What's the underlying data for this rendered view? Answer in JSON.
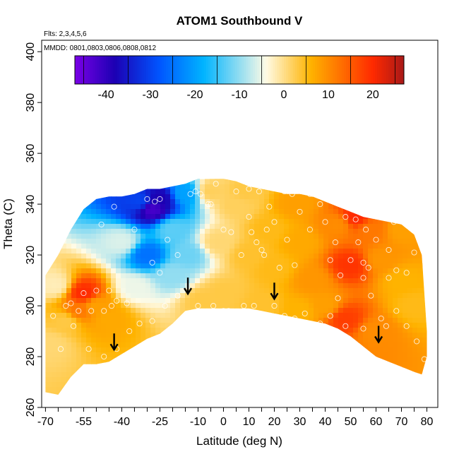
{
  "chart_data": {
    "type": "heatmap",
    "title": "ATOM1 Southbound V",
    "note_flights": "Flts: 2,3,4,5,6",
    "note_dates": "MMDD: 0801,0803,0806,0808,0812",
    "xlabel": "Latitude (deg N)",
    "ylabel": "Theta (C)",
    "xlim": [
      -70,
      80
    ],
    "ylim": [
      260,
      400
    ],
    "x_tick_labels": [
      "-70",
      "-55",
      "-40",
      "-25",
      "-10",
      "0",
      "10",
      "20",
      "30",
      "40",
      "50",
      "60",
      "70",
      "80"
    ],
    "y_tick_labels": [
      "260",
      "280",
      "300",
      "320",
      "340",
      "360",
      "380",
      "400"
    ],
    "colorbar": {
      "min": -47,
      "max": 27,
      "tick_labels": [
        "-40",
        "-30",
        "-20",
        "-10",
        "0",
        "10",
        "20"
      ],
      "stops": [
        "#7a00e6",
        "#1c00b3",
        "#0055ff",
        "#00b4ff",
        "#fffbe6",
        "#ffb300",
        "#ff2a00",
        "#a81818"
      ]
    },
    "envelope": {
      "top": [
        [
          -70,
          312
        ],
        [
          -65,
          320
        ],
        [
          -60,
          330
        ],
        [
          -55,
          338
        ],
        [
          -50,
          342
        ],
        [
          -45,
          343
        ],
        [
          -40,
          343
        ],
        [
          -35,
          344
        ],
        [
          -30,
          346
        ],
        [
          -25,
          346
        ],
        [
          -20,
          347
        ],
        [
          -15,
          348
        ],
        [
          -10,
          350
        ],
        [
          -5,
          350
        ],
        [
          0,
          350
        ],
        [
          5,
          349
        ],
        [
          10,
          347
        ],
        [
          15,
          346
        ],
        [
          20,
          345
        ],
        [
          25,
          344
        ],
        [
          30,
          344
        ],
        [
          35,
          343
        ],
        [
          40,
          341
        ],
        [
          45,
          339
        ],
        [
          50,
          337
        ],
        [
          55,
          335
        ],
        [
          60,
          334
        ],
        [
          65,
          333
        ],
        [
          70,
          332
        ],
        [
          75,
          328
        ],
        [
          78,
          320
        ],
        [
          80,
          290
        ]
      ],
      "bottom": [
        [
          80,
          280
        ],
        [
          78,
          273
        ],
        [
          75,
          274
        ],
        [
          70,
          276
        ],
        [
          65,
          278
        ],
        [
          60,
          280
        ],
        [
          55,
          284
        ],
        [
          50,
          288
        ],
        [
          45,
          291
        ],
        [
          40,
          293
        ],
        [
          35,
          294
        ],
        [
          30,
          295
        ],
        [
          25,
          296
        ],
        [
          20,
          297
        ],
        [
          15,
          298
        ],
        [
          10,
          299
        ],
        [
          5,
          299
        ],
        [
          0,
          299
        ],
        [
          -5,
          299
        ],
        [
          -10,
          299
        ],
        [
          -15,
          298
        ],
        [
          -20,
          293
        ],
        [
          -25,
          289
        ],
        [
          -30,
          287
        ],
        [
          -35,
          284
        ],
        [
          -40,
          281
        ],
        [
          -45,
          278
        ],
        [
          -50,
          277
        ],
        [
          -55,
          277
        ],
        [
          -60,
          272
        ],
        [
          -65,
          265
        ],
        [
          -70,
          266
        ]
      ]
    },
    "field_points": [
      {
        "lat": -55,
        "theta": 305,
        "v": 20
      },
      {
        "lat": -57,
        "theta": 298,
        "v": 12
      },
      {
        "lat": -50,
        "theta": 300,
        "v": 8
      },
      {
        "lat": -62,
        "theta": 294,
        "v": 3
      },
      {
        "lat": -45,
        "theta": 295,
        "v": 7
      },
      {
        "lat": -66,
        "theta": 308,
        "v": -2
      },
      {
        "lat": -28,
        "theta": 338,
        "v": -42
      },
      {
        "lat": -25,
        "theta": 342,
        "v": -38
      },
      {
        "lat": -33,
        "theta": 341,
        "v": -30
      },
      {
        "lat": -30,
        "theta": 320,
        "v": -25
      },
      {
        "lat": -20,
        "theta": 330,
        "v": -13
      },
      {
        "lat": -40,
        "theta": 325,
        "v": -6
      },
      {
        "lat": -20,
        "theta": 312,
        "v": -10
      },
      {
        "lat": -35,
        "theta": 307,
        "v": -5
      },
      {
        "lat": -15,
        "theta": 344,
        "v": -20
      },
      {
        "lat": -14,
        "theta": 320,
        "v": -12
      },
      {
        "lat": -5,
        "theta": 345,
        "v": 2
      },
      {
        "lat": -2,
        "theta": 325,
        "v": 1
      },
      {
        "lat": 5,
        "theta": 340,
        "v": 2
      },
      {
        "lat": 0,
        "theta": 305,
        "v": 3
      },
      {
        "lat": 10,
        "theta": 320,
        "v": 4
      },
      {
        "lat": 18,
        "theta": 330,
        "v": 5
      },
      {
        "lat": 20,
        "theta": 315,
        "v": 5
      },
      {
        "lat": 15,
        "theta": 300,
        "v": 4
      },
      {
        "lat": 28,
        "theta": 340,
        "v": 8
      },
      {
        "lat": 30,
        "theta": 325,
        "v": 7
      },
      {
        "lat": 35,
        "theta": 310,
        "v": 9
      },
      {
        "lat": 30,
        "theta": 298,
        "v": 6
      },
      {
        "lat": 45,
        "theta": 332,
        "v": 10
      },
      {
        "lat": 52,
        "theta": 335,
        "v": 20
      },
      {
        "lat": 50,
        "theta": 316,
        "v": 19
      },
      {
        "lat": 48,
        "theta": 295,
        "v": 18
      },
      {
        "lat": 58,
        "theta": 330,
        "v": 12
      },
      {
        "lat": 62,
        "theta": 318,
        "v": 9
      },
      {
        "lat": 70,
        "theta": 330,
        "v": 8
      },
      {
        "lat": 70,
        "theta": 310,
        "v": 6
      },
      {
        "lat": 60,
        "theta": 290,
        "v": 10
      },
      {
        "lat": 75,
        "theta": 300,
        "v": 5
      },
      {
        "lat": 40,
        "theta": 300,
        "v": 8
      },
      {
        "lat": 8,
        "theta": 345,
        "v": 3
      },
      {
        "lat": -8,
        "theta": 302,
        "v": 3
      },
      {
        "lat": -68,
        "theta": 285,
        "v": 1
      }
    ],
    "observations": [
      [
        -27,
        341
      ],
      [
        -25,
        342
      ],
      [
        -30,
        342
      ],
      [
        -22,
        326
      ],
      [
        -18,
        320
      ],
      [
        -28,
        317
      ],
      [
        -35,
        330
      ],
      [
        -43,
        339
      ],
      [
        -48,
        332
      ],
      [
        -25,
        313
      ],
      [
        -55,
        305
      ],
      [
        -57,
        298
      ],
      [
        -52,
        298
      ],
      [
        -47,
        298
      ],
      [
        -44,
        300
      ],
      [
        -42,
        302
      ],
      [
        -38,
        301
      ],
      [
        -50,
        306
      ],
      [
        -45,
        306
      ],
      [
        -60,
        301
      ],
      [
        -62,
        300
      ],
      [
        -67,
        296
      ],
      [
        -59,
        292
      ],
      [
        -64,
        283
      ],
      [
        -53,
        283
      ],
      [
        -47,
        280
      ],
      [
        -42,
        283
      ],
      [
        -11,
        345
      ],
      [
        -5,
        340
      ],
      [
        -3,
        348
      ],
      [
        0,
        330
      ],
      [
        3,
        329
      ],
      [
        7,
        320
      ],
      [
        10,
        335
      ],
      [
        11,
        329
      ],
      [
        13,
        325
      ],
      [
        15,
        322
      ],
      [
        16,
        320
      ],
      [
        18,
        339
      ],
      [
        17,
        330
      ],
      [
        20,
        333
      ],
      [
        25,
        326
      ],
      [
        22,
        315
      ],
      [
        28,
        316
      ],
      [
        30,
        337
      ],
      [
        35,
        344
      ],
      [
        38,
        340
      ],
      [
        34,
        330
      ],
      [
        40,
        333
      ],
      [
        42,
        318
      ],
      [
        44,
        325
      ],
      [
        46,
        312
      ],
      [
        48,
        335
      ],
      [
        50,
        342
      ],
      [
        52,
        334
      ],
      [
        50,
        318
      ],
      [
        53,
        325
      ],
      [
        55,
        317
      ],
      [
        55,
        311
      ],
      [
        56,
        330
      ],
      [
        60,
        326
      ],
      [
        57,
        315
      ],
      [
        65,
        322
      ],
      [
        67,
        333
      ],
      [
        65,
        311
      ],
      [
        68,
        314
      ],
      [
        72,
        313
      ],
      [
        75,
        321
      ],
      [
        72,
        335
      ],
      [
        58,
        304
      ],
      [
        64,
        292
      ],
      [
        68,
        298
      ],
      [
        72,
        292
      ],
      [
        76,
        286
      ],
      [
        79,
        279
      ],
      [
        -6,
        340
      ],
      [
        -13,
        344
      ],
      [
        -9,
        344
      ],
      [
        5,
        345
      ],
      [
        10,
        346
      ],
      [
        14,
        345
      ],
      [
        20,
        347
      ],
      [
        24,
        345
      ],
      [
        27,
        344
      ],
      [
        34,
        344
      ],
      [
        -14,
        306
      ],
      [
        -18,
        304
      ],
      [
        -23,
        300
      ],
      [
        -28,
        294
      ],
      [
        -33,
        293
      ],
      [
        -37,
        290
      ],
      [
        -10,
        300
      ],
      [
        -4,
        300
      ],
      [
        0,
        298
      ],
      [
        2,
        298
      ],
      [
        8,
        300
      ],
      [
        12,
        300
      ],
      [
        20,
        300
      ],
      [
        24,
        296
      ],
      [
        28,
        295
      ],
      [
        32,
        297
      ],
      [
        38,
        293
      ],
      [
        42,
        296
      ],
      [
        48,
        292
      ],
      [
        55,
        291
      ],
      [
        62,
        295
      ],
      [
        45,
        303
      ]
    ],
    "arrows": [
      {
        "lat": -43,
        "theta": 283
      },
      {
        "lat": -14,
        "theta": 305
      },
      {
        "lat": 20,
        "theta": 303
      },
      {
        "lat": 61,
        "theta": 286
      }
    ]
  }
}
